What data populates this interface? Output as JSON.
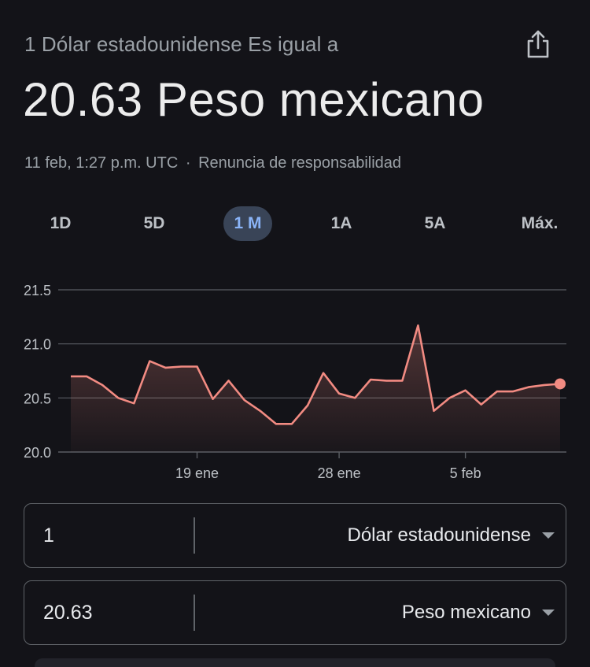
{
  "header": {
    "subtitle": "1 Dólar estadounidense Es igual a",
    "value": "20.63 Peso mexicano",
    "timestamp": "11 feb, 1:27 p.m. UTC",
    "separator": "·",
    "disclaimer": "Renuncia de responsabilidad",
    "share_icon": "share-icon"
  },
  "tabs": [
    {
      "label": "1D",
      "active": false
    },
    {
      "label": "5D",
      "active": false
    },
    {
      "label": "1 M",
      "active": true
    },
    {
      "label": "1A",
      "active": false
    },
    {
      "label": "5A",
      "active": false
    },
    {
      "label": "Máx.",
      "active": false
    }
  ],
  "chart_data": {
    "type": "area",
    "y_ticks": [
      "21.5",
      "21.0",
      "20.5",
      "20.0"
    ],
    "ylim": [
      20.0,
      21.5
    ],
    "x_tick_labels": [
      {
        "label": "19 ene",
        "index": 8
      },
      {
        "label": "28 ene",
        "index": 17
      },
      {
        "label": "5 feb",
        "index": 25
      }
    ],
    "values": [
      20.7,
      20.7,
      20.62,
      20.5,
      20.45,
      20.84,
      20.78,
      20.79,
      20.79,
      20.49,
      20.66,
      20.48,
      20.38,
      20.26,
      20.26,
      20.43,
      20.73,
      20.54,
      20.5,
      20.67,
      20.66,
      20.66,
      21.17,
      20.38,
      20.5,
      20.57,
      20.44,
      20.56,
      20.56,
      20.6,
      20.62,
      20.63
    ],
    "line_color": "#f28b82",
    "grid": true
  },
  "converter": {
    "from": {
      "amount": "1",
      "currency": "Dólar estadounidense"
    },
    "to": {
      "amount": "20.63",
      "currency": "Peso mexicano"
    }
  }
}
